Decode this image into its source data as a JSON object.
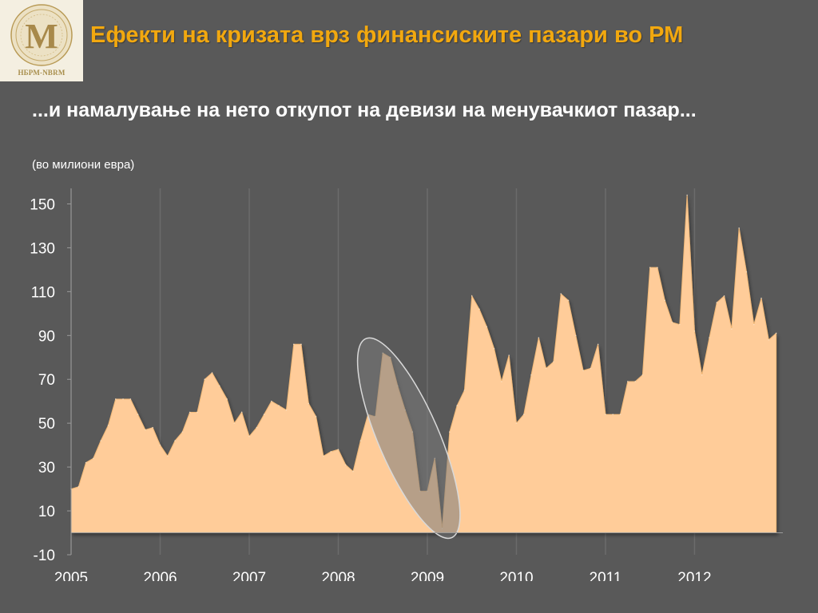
{
  "logo": {
    "icon": "nbrm-seal-icon",
    "caption": "НБРМ-NBRM"
  },
  "header": {
    "title": "Ефекти на кризата врз финансиските пазари во РМ"
  },
  "subtitle": "...и намалување на нето откупот на девизи на менувачкиот пазар...",
  "unit_note": "(во милиони евра)",
  "colors": {
    "background": "#595959",
    "title": "#f2a80f",
    "area_fill": "#ffcc99",
    "highlight_ellipse": "#d9d9d9",
    "gridline": "#6b6b6b"
  },
  "chart_data": {
    "type": "area",
    "title": "",
    "xlabel": "",
    "ylabel": "",
    "ylim": [
      -10,
      160
    ],
    "y_ticks": [
      -10,
      10,
      30,
      50,
      70,
      90,
      110,
      130,
      150
    ],
    "x_ticks": [
      "2005",
      "2006",
      "2007",
      "2008",
      "2009",
      "2010",
      "2011",
      "2012"
    ],
    "x_range": [
      "2005-01",
      "2012-12"
    ],
    "grid": "vertical",
    "legend": "none",
    "highlight": {
      "shape": "ellipse",
      "from": "2008-06",
      "to": "2009-03"
    },
    "x": [
      "2005-01",
      "2005-02",
      "2005-03",
      "2005-04",
      "2005-05",
      "2005-06",
      "2005-07",
      "2005-08",
      "2005-09",
      "2005-10",
      "2005-11",
      "2005-12",
      "2006-01",
      "2006-02",
      "2006-03",
      "2006-04",
      "2006-05",
      "2006-06",
      "2006-07",
      "2006-08",
      "2006-09",
      "2006-10",
      "2006-11",
      "2006-12",
      "2007-01",
      "2007-02",
      "2007-03",
      "2007-04",
      "2007-05",
      "2007-06",
      "2007-07",
      "2007-08",
      "2007-09",
      "2007-10",
      "2007-11",
      "2007-12",
      "2008-01",
      "2008-02",
      "2008-03",
      "2008-04",
      "2008-05",
      "2008-06",
      "2008-07",
      "2008-08",
      "2008-09",
      "2008-10",
      "2008-11",
      "2008-12",
      "2009-01",
      "2009-02",
      "2009-03",
      "2009-04",
      "2009-05",
      "2009-06",
      "2009-07",
      "2009-08",
      "2009-09",
      "2009-10",
      "2009-11",
      "2009-12",
      "2010-01",
      "2010-02",
      "2010-03",
      "2010-04",
      "2010-05",
      "2010-06",
      "2010-07",
      "2010-08",
      "2010-09",
      "2010-10",
      "2010-11",
      "2010-12",
      "2011-01",
      "2011-02",
      "2011-03",
      "2011-04",
      "2011-05",
      "2011-06",
      "2011-07",
      "2011-08",
      "2011-09",
      "2011-10",
      "2011-11",
      "2011-12",
      "2012-01",
      "2012-02",
      "2012-03",
      "2012-04",
      "2012-05",
      "2012-06",
      "2012-07",
      "2012-08",
      "2012-09",
      "2012-10",
      "2012-11",
      "2012-12"
    ],
    "series": [
      {
        "values": [
          20,
          21,
          32,
          34,
          42,
          49,
          61,
          61,
          61,
          54,
          47,
          48,
          40,
          35,
          42,
          46,
          55,
          55,
          70,
          73,
          67,
          61,
          50,
          55,
          44,
          48,
          54,
          60,
          58,
          56,
          86,
          86,
          59,
          53,
          35,
          37,
          38,
          31,
          28,
          42,
          54,
          53,
          82,
          80,
          67,
          56,
          46,
          19,
          19,
          34,
          2,
          46,
          58,
          65,
          108,
          102,
          94,
          84,
          69,
          81,
          50,
          54,
          72,
          89,
          75,
          78,
          109,
          106,
          90,
          74,
          75,
          86,
          54,
          54,
          54,
          69,
          69,
          72,
          121,
          121,
          106,
          96,
          95,
          154,
          92,
          72,
          89,
          105,
          108,
          93,
          139,
          119,
          95,
          107,
          88,
          91
        ]
      }
    ]
  }
}
